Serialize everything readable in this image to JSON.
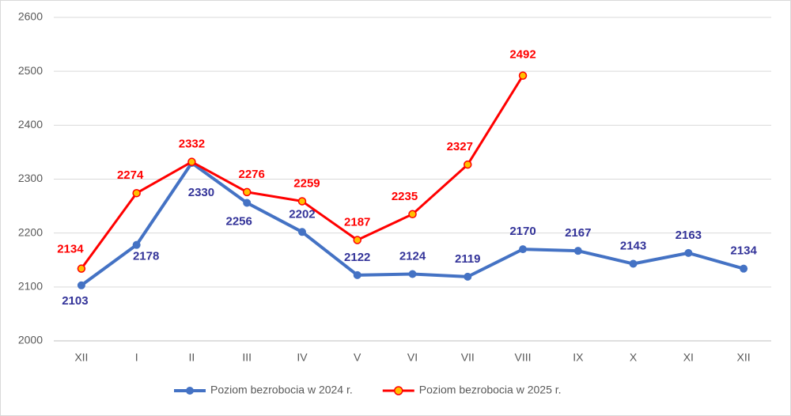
{
  "chart_data": {
    "type": "line",
    "categories": [
      "XII",
      "I",
      "II",
      "III",
      "IV",
      "V",
      "VI",
      "VII",
      "VIII",
      "IX",
      "X",
      "XI",
      "XII"
    ],
    "series": [
      {
        "name": "Poziom bezrobocia w 2024 r.",
        "color": "#4472c4",
        "label_color": "#333399",
        "values": [
          2103,
          2178,
          2330,
          2256,
          2202,
          2122,
          2124,
          2119,
          2170,
          2167,
          2143,
          2163,
          2134
        ]
      },
      {
        "name": "Poziom bezrobocia w 2025 r.",
        "color": "#ff0000",
        "label_color": "#ff0000",
        "values": [
          2134,
          2274,
          2332,
          2276,
          2259,
          2187,
          2235,
          2327,
          2492,
          null,
          null,
          null,
          null
        ]
      }
    ],
    "ylim": [
      2000,
      2600
    ],
    "yticks": [
      2000,
      2100,
      2200,
      2300,
      2400,
      2500,
      2600
    ],
    "grid": true,
    "legend": "bottom"
  }
}
